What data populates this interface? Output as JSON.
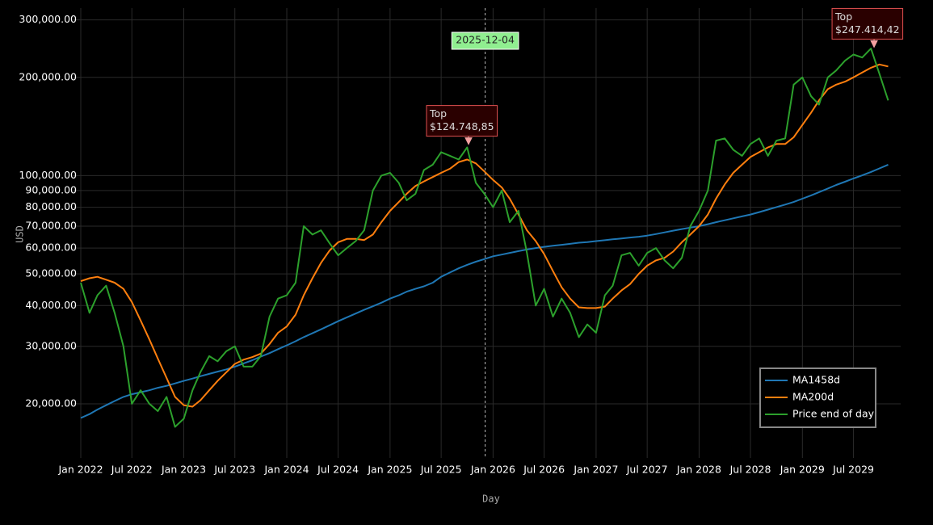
{
  "chart_data": {
    "type": "line",
    "x": [
      "2022-01",
      "2022-02",
      "2022-03",
      "2022-04",
      "2022-05",
      "2022-06",
      "2022-07",
      "2022-08",
      "2022-09",
      "2022-10",
      "2022-11",
      "2022-12",
      "2023-01",
      "2023-02",
      "2023-03",
      "2023-04",
      "2023-05",
      "2023-06",
      "2023-07",
      "2023-08",
      "2023-09",
      "2023-10",
      "2023-11",
      "2023-12",
      "2024-01",
      "2024-02",
      "2024-03",
      "2024-04",
      "2024-05",
      "2024-06",
      "2024-07",
      "2024-08",
      "2024-09",
      "2024-10",
      "2024-11",
      "2024-12",
      "2025-01",
      "2025-02",
      "2025-03",
      "2025-04",
      "2025-05",
      "2025-06",
      "2025-07",
      "2025-08",
      "2025-09",
      "2025-10",
      "2025-11",
      "2025-12",
      "2026-01",
      "2026-02",
      "2026-03",
      "2026-04",
      "2026-05",
      "2026-06",
      "2026-07",
      "2026-08",
      "2026-09",
      "2026-10",
      "2026-11",
      "2026-12",
      "2027-01",
      "2027-02",
      "2027-03",
      "2027-04",
      "2027-05",
      "2027-06",
      "2027-07",
      "2027-08",
      "2027-09",
      "2027-10",
      "2027-11",
      "2027-12",
      "2028-01",
      "2028-02",
      "2028-03",
      "2028-04",
      "2028-05",
      "2028-06",
      "2028-07",
      "2028-08",
      "2028-09",
      "2028-10",
      "2028-11",
      "2028-12",
      "2029-01",
      "2029-02",
      "2029-03",
      "2029-04",
      "2029-05",
      "2029-06",
      "2029-07",
      "2029-08",
      "2029-09",
      "2029-10",
      "2029-11"
    ],
    "series": [
      {
        "name": "MA1458d",
        "color": "#1f77b4",
        "values": [
          18100,
          18600,
          19200,
          19800,
          20400,
          21000,
          21400,
          21700,
          22000,
          22400,
          22700,
          23100,
          23500,
          23900,
          24300,
          24700,
          25100,
          25500,
          26000,
          26600,
          27200,
          27900,
          28600,
          29400,
          30200,
          31100,
          32000,
          32900,
          33800,
          34800,
          35800,
          36800,
          37800,
          38800,
          39800,
          40800,
          42000,
          43000,
          44100,
          45000,
          45800,
          47000,
          49000,
          50500,
          52000,
          53300,
          54500,
          55500,
          56600,
          57300,
          58000,
          58700,
          59400,
          60000,
          60500,
          61000,
          61400,
          61800,
          62300,
          62600,
          63000,
          63400,
          63800,
          64200,
          64600,
          65000,
          65500,
          66200,
          67000,
          67800,
          68600,
          69300,
          70000,
          71000,
          72000,
          73000,
          74000,
          75000,
          76000,
          77300,
          78700,
          80100,
          81500,
          83000,
          85000,
          87000,
          89000,
          91300,
          93600,
          95800,
          98000,
          100200,
          102600,
          105200,
          108000
        ]
      },
      {
        "name": "MA200d",
        "color": "#ff7f0e",
        "values": [
          47500,
          48500,
          49000,
          48000,
          47000,
          45000,
          41000,
          36000,
          31500,
          27500,
          24000,
          21000,
          19800,
          19600,
          20500,
          22000,
          23500,
          25000,
          26500,
          27300,
          27800,
          28500,
          30500,
          33000,
          34500,
          37500,
          43000,
          48500,
          54000,
          59000,
          62500,
          64000,
          64000,
          63500,
          66000,
          72000,
          78000,
          83000,
          88000,
          93000,
          96000,
          99000,
          102000,
          105000,
          110000,
          112000,
          109000,
          103000,
          97000,
          92000,
          85000,
          76000,
          68000,
          63000,
          57500,
          51000,
          45500,
          42000,
          39500,
          39300,
          39300,
          39700,
          42000,
          44500,
          46500,
          50000,
          53000,
          55000,
          56000,
          58500,
          62500,
          66000,
          70000,
          76000,
          85000,
          94000,
          102000,
          108000,
          114000,
          118000,
          122000,
          125000,
          125000,
          131000,
          143000,
          156000,
          170000,
          184000,
          190000,
          194000,
          200000,
          207000,
          214000,
          219000,
          216000
        ]
      },
      {
        "name": "Price end of day",
        "color": "#2ca02c",
        "values": [
          47000,
          38000,
          43000,
          46000,
          38000,
          30000,
          20000,
          22000,
          20000,
          19000,
          21000,
          17000,
          18000,
          22000,
          25000,
          28000,
          27000,
          29000,
          30000,
          26000,
          26000,
          28000,
          37000,
          42000,
          43000,
          47000,
          70000,
          66000,
          68000,
          62000,
          57000,
          60000,
          63000,
          68000,
          90000,
          100000,
          102000,
          95000,
          84000,
          88000,
          104000,
          108000,
          118000,
          115000,
          112000,
          122000,
          95000,
          88000,
          80000,
          90000,
          72000,
          78000,
          58000,
          40000,
          45000,
          37000,
          42000,
          38000,
          32000,
          35000,
          33000,
          43000,
          46000,
          57000,
          58000,
          53000,
          58000,
          60000,
          55000,
          52000,
          56000,
          70000,
          78000,
          90000,
          128000,
          130000,
          120000,
          115000,
          125000,
          130000,
          115000,
          128000,
          130000,
          190000,
          200000,
          175000,
          165000,
          200000,
          210000,
          225000,
          235000,
          230000,
          245000,
          205000,
          170000
        ]
      }
    ],
    "xlim": [
      "2022-01",
      "2029-12"
    ],
    "xticks": [
      {
        "value": "2022-01",
        "label": "Jan 2022"
      },
      {
        "value": "2022-07",
        "label": "Jul 2022"
      },
      {
        "value": "2023-01",
        "label": "Jan 2023"
      },
      {
        "value": "2023-07",
        "label": "Jul 2023"
      },
      {
        "value": "2024-01",
        "label": "Jan 2024"
      },
      {
        "value": "2024-07",
        "label": "Jul 2024"
      },
      {
        "value": "2025-01",
        "label": "Jan 2025"
      },
      {
        "value": "2025-07",
        "label": "Jul 2025"
      },
      {
        "value": "2026-01",
        "label": "Jan 2026"
      },
      {
        "value": "2026-07",
        "label": "Jul 2026"
      },
      {
        "value": "2027-01",
        "label": "Jan 2027"
      },
      {
        "value": "2027-07",
        "label": "Jul 2027"
      },
      {
        "value": "2028-01",
        "label": "Jan 2028"
      },
      {
        "value": "2028-07",
        "label": "Jul 2028"
      },
      {
        "value": "2029-01",
        "label": "Jan 2029"
      },
      {
        "value": "2029-07",
        "label": "Jul 2029"
      }
    ],
    "ylim": [
      13650,
      326000
    ],
    "log_y": true,
    "yticks": [
      {
        "value": 20000,
        "label": "20,000.00"
      },
      {
        "value": 30000,
        "label": "30,000.00"
      },
      {
        "value": 40000,
        "label": "40,000.00"
      },
      {
        "value": 50000,
        "label": "50,000.00"
      },
      {
        "value": 60000,
        "label": "60,000.00"
      },
      {
        "value": 70000,
        "label": "70,000.00"
      },
      {
        "value": 80000,
        "label": "80,000.00"
      },
      {
        "value": 90000,
        "label": "90,000.00"
      },
      {
        "value": 100000,
        "label": "100,000.00"
      },
      {
        "value": 200000,
        "label": "200,000.00"
      },
      {
        "value": 300000,
        "label": "300,000.00"
      }
    ],
    "x_label": "Day",
    "y_label": "USD",
    "grid": true,
    "legend_position": "lower right",
    "hover": {
      "x": "2025-12-04",
      "label": "2025-12-04"
    },
    "annotations": [
      {
        "x": "2025-10-06",
        "value": 124748.85,
        "lines": [
          "Top",
          "$124.748,85"
        ]
      },
      {
        "x": "2029-09-12",
        "value": 247414.42,
        "lines": [
          "Top",
          "$247.414,42"
        ]
      }
    ]
  }
}
